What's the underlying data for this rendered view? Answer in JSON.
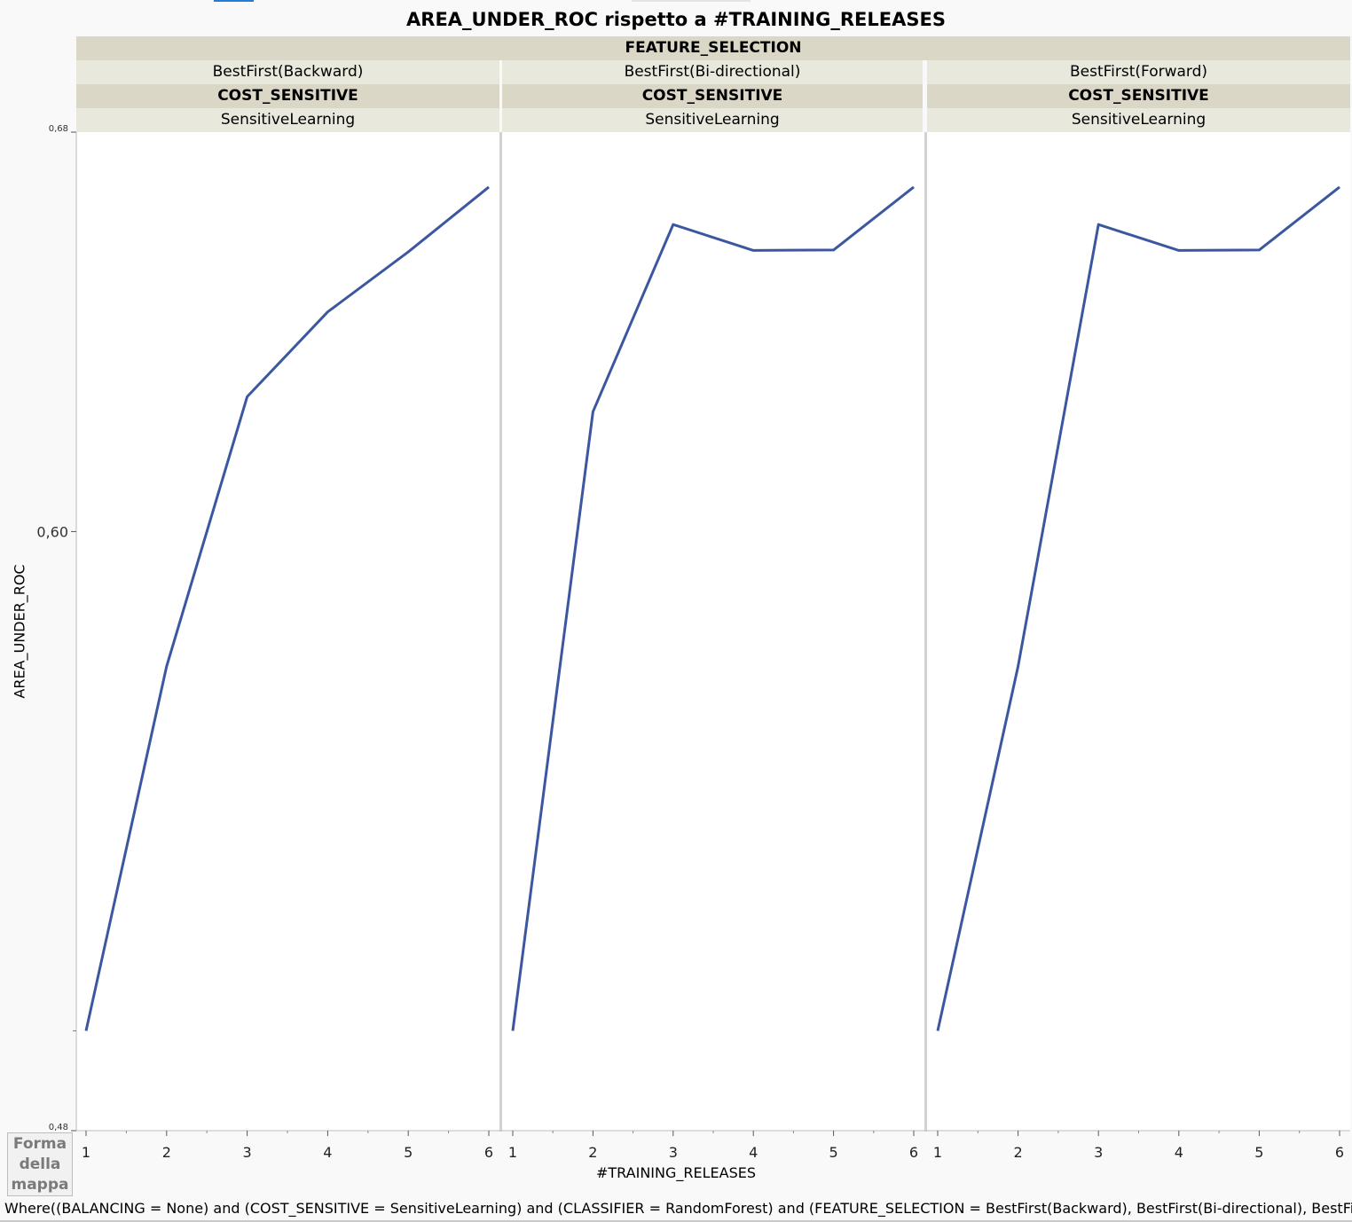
{
  "chart_data": {
    "type": "line",
    "title": "AREA_UNDER_ROC rispetto a #TRAINING_RELEASES",
    "xlabel": "#TRAINING_RELEASES",
    "ylabel": "AREA_UNDER_ROC",
    "ylim": [
      0.48,
      0.68
    ],
    "yticks": [
      "0,68",
      "0,60",
      "0,48"
    ],
    "x": [
      1,
      2,
      3,
      4,
      5,
      6
    ],
    "grid": false,
    "group_header_1": "FEATURE_SELECTION",
    "group_header_2": "COST_SENSITIVE",
    "panels": [
      {
        "feature_selection": "BestFirst(Backward)",
        "cost_sensitive": "SensitiveLearning",
        "values": [
          0.5,
          0.573,
          0.627,
          0.644,
          0.656,
          0.669
        ]
      },
      {
        "feature_selection": "BestFirst(Bi-directional)",
        "cost_sensitive": "SensitiveLearning",
        "values": [
          0.5,
          0.624,
          0.6615,
          0.6563,
          0.6564,
          0.669
        ]
      },
      {
        "feature_selection": "BestFirst(Forward)",
        "cost_sensitive": "SensitiveLearning",
        "values": [
          0.5,
          0.573,
          0.6615,
          0.6563,
          0.6564,
          0.669
        ]
      }
    ],
    "series_color": "#3b57a0"
  },
  "legend": {
    "line1": "Forma",
    "line2": "della",
    "line3": "mappa"
  },
  "where_clause": "Where((BALANCING = None) and (COST_SENSITIVE = SensitiveLearning) and (CLASSIFIER = RandomForest) and (FEATURE_SELECTION = BestFirst(Backward), BestFirst(Bi-directional), BestFirst(F"
}
